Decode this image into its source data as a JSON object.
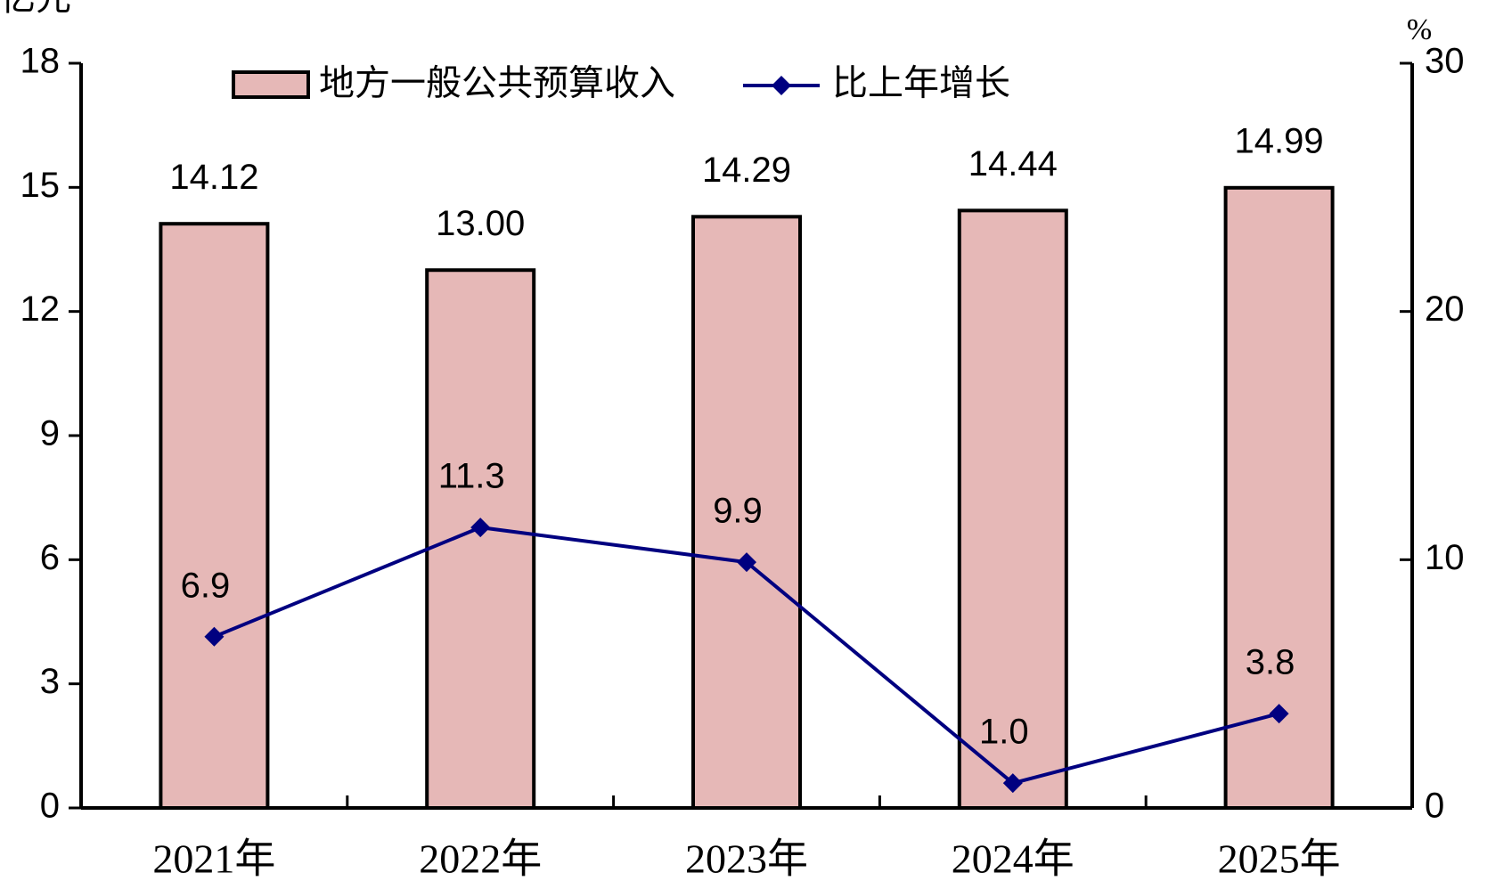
{
  "chart_data": {
    "type": "bar_line",
    "y_label": "亿元",
    "y2_label": "%",
    "categories": [
      "2021年",
      "2022年",
      "2023年",
      "2024年",
      "2025年"
    ],
    "series": [
      {
        "name": "地方一般公共预算收入",
        "type": "bar",
        "color": "#e6b8b7",
        "values": [
          14.12,
          13.0,
          14.29,
          14.44,
          14.99
        ],
        "value_labels": [
          "14.12",
          "13.00",
          "14.29",
          "14.44",
          "14.99"
        ]
      },
      {
        "name": "比上年增长",
        "type": "line",
        "axis": "y2",
        "color": "#000080",
        "values": [
          6.9,
          11.3,
          9.9,
          1.0,
          3.8
        ],
        "value_labels": [
          "6.9",
          "11.3",
          "9.9",
          "1.0",
          "3.8"
        ]
      }
    ],
    "ylim": [
      0,
      18
    ],
    "yticks": [
      0,
      3,
      6,
      9,
      12,
      15,
      18
    ],
    "y2lim": [
      0,
      30
    ],
    "y2ticks": [
      0,
      10,
      20,
      30
    ]
  }
}
